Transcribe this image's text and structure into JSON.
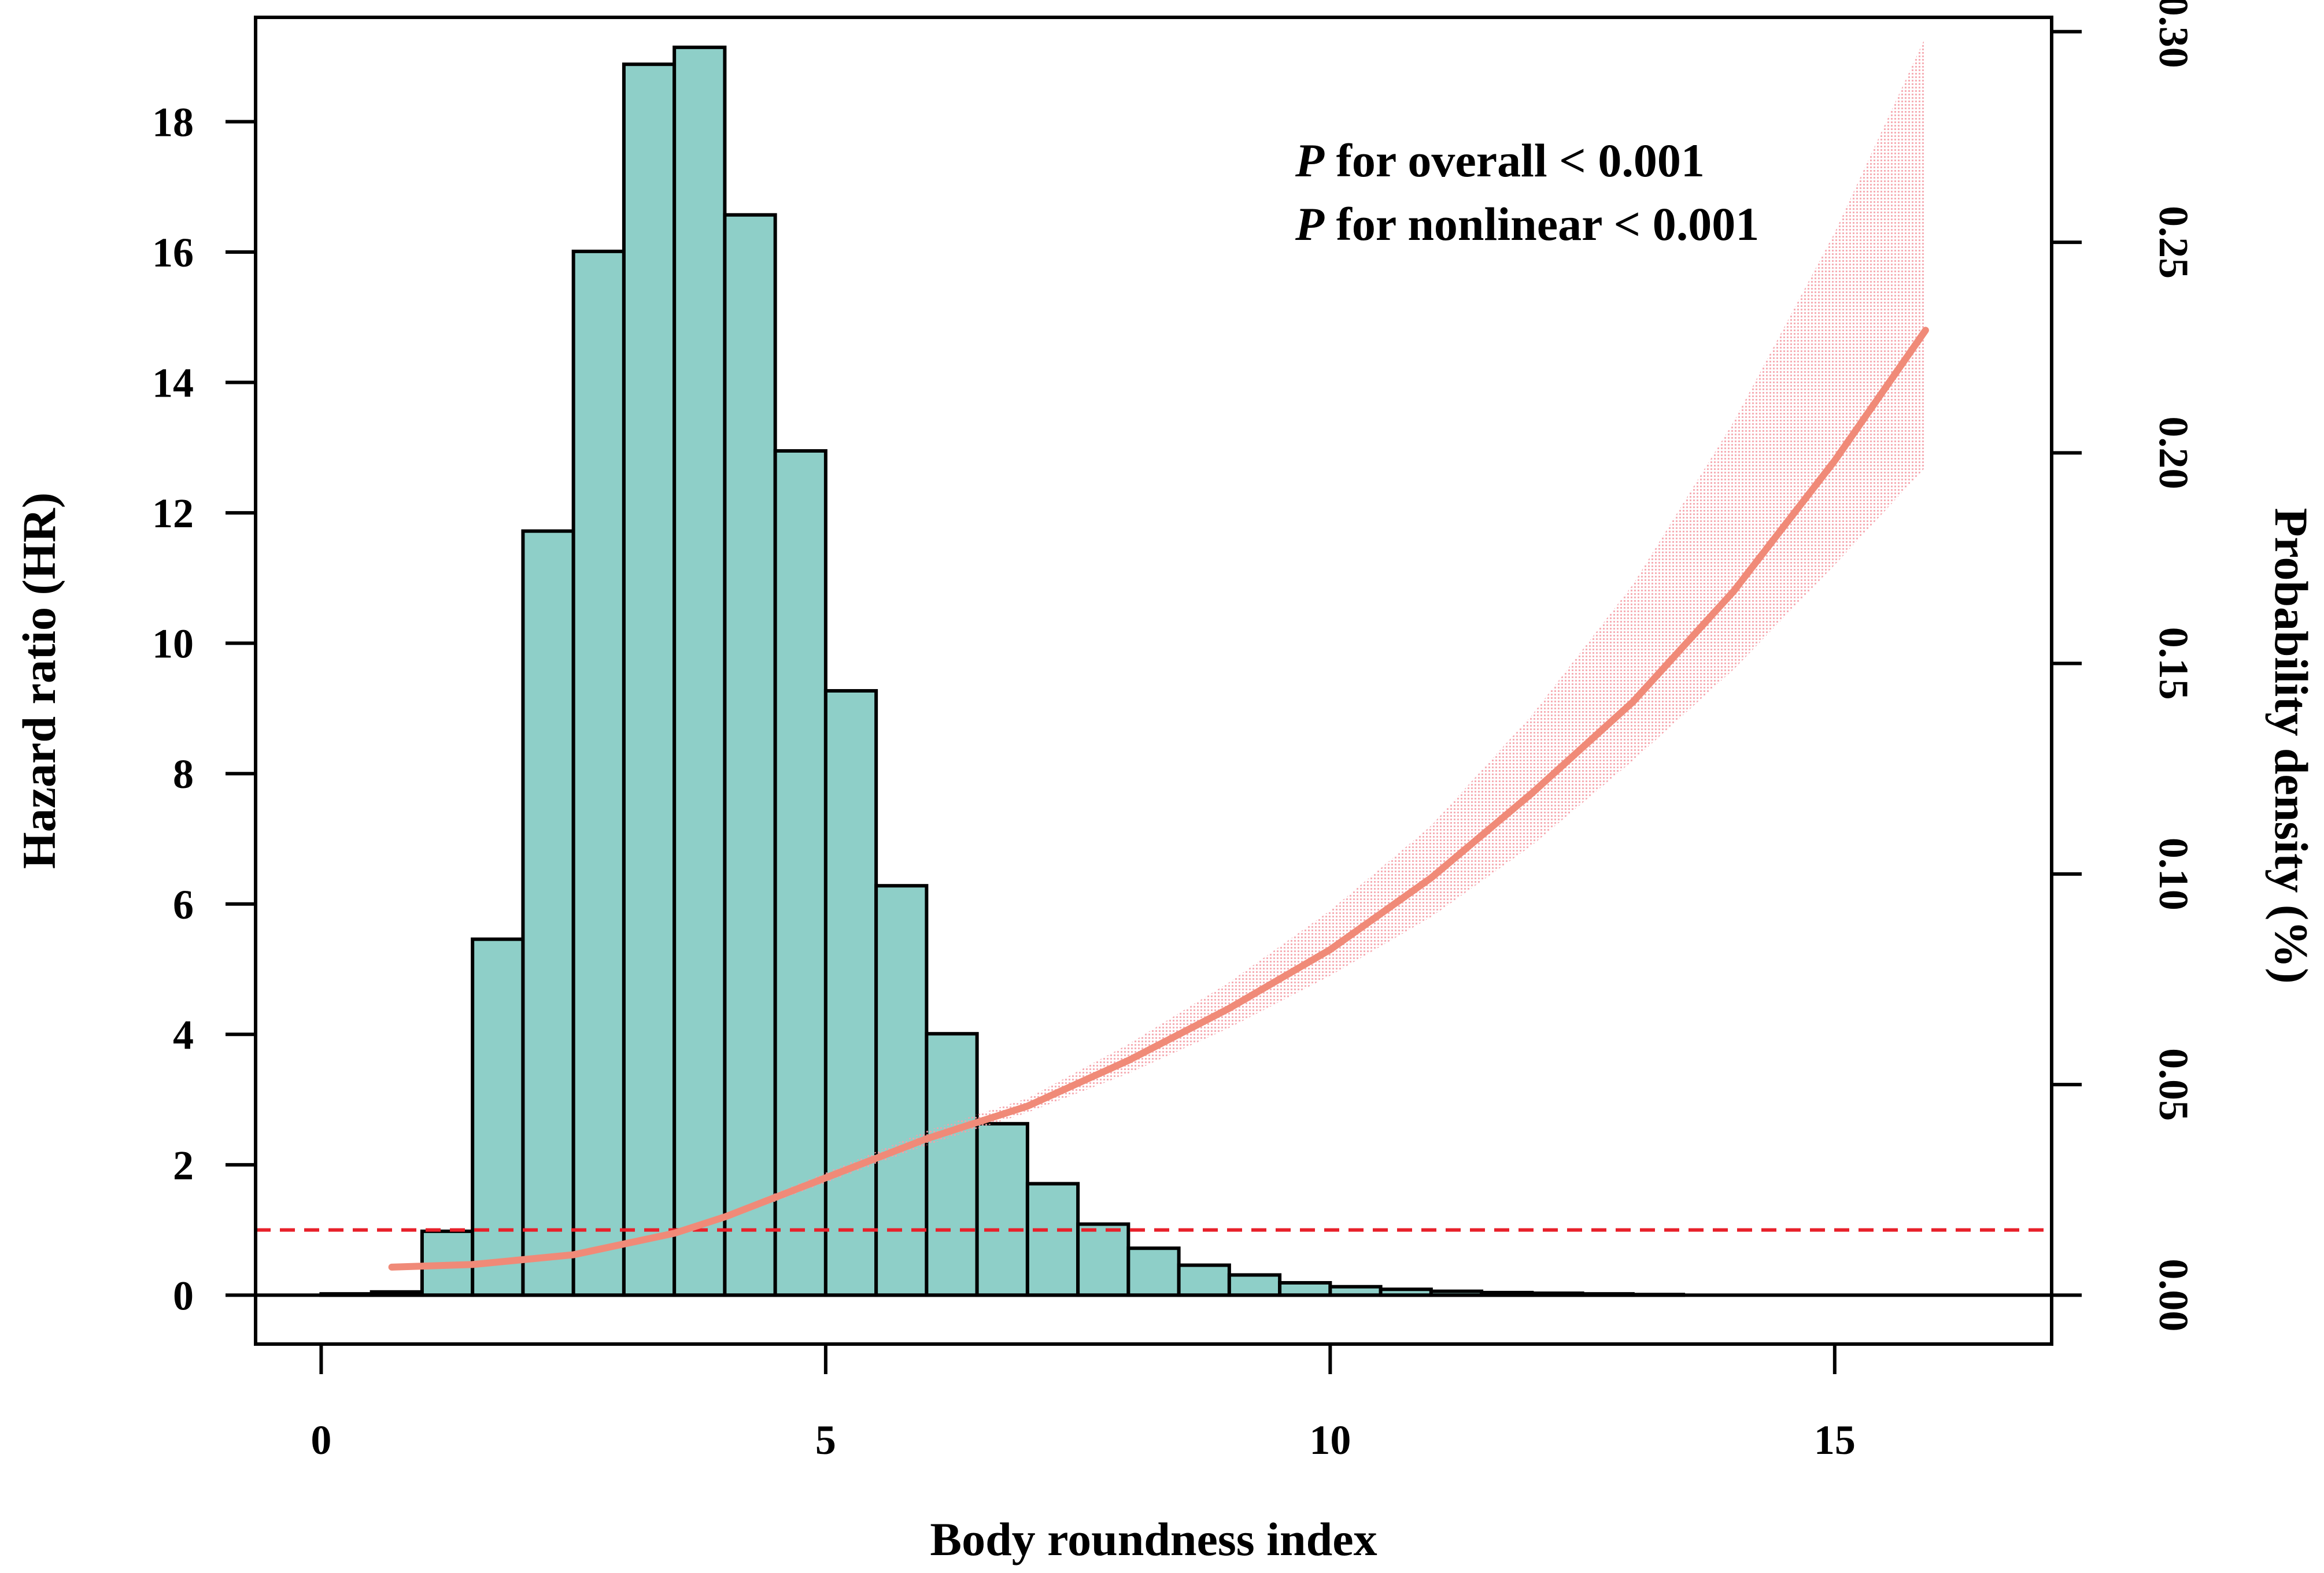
{
  "chart_data": {
    "type": "histogram+line",
    "xlabel": "Body roundness index",
    "ylabel_left": "Hazard ratio (HR)",
    "ylabel_right": "Probability density (%)",
    "xlim": [
      -0.65,
      17.15
    ],
    "ylim_left": [
      -0.75,
      19.6
    ],
    "x_ticks": [
      0,
      5,
      10,
      15
    ],
    "x_tick_labels": [
      "0",
      "5",
      "10",
      "15"
    ],
    "y_left_ticks": [
      0,
      2,
      4,
      6,
      8,
      10,
      12,
      14,
      16,
      18
    ],
    "y_left_tick_labels": [
      "0",
      "2",
      "4",
      "6",
      "8",
      "10",
      "12",
      "14",
      "16",
      "18"
    ],
    "y_right_ticks": [
      0,
      3.23,
      6.46,
      9.69,
      12.92,
      16.15
    ],
    "y_right_tick_labels": [
      "0.00",
      "0.05",
      "0.10",
      "0.15",
      "0.20",
      "0.25"
    ],
    "y_right_ticks_upper": [
      19.38
    ],
    "y_right_tick_labels_upper": [
      "0.30"
    ],
    "annotations": [
      {
        "italic": "P",
        "text": " for overall < 0.001"
      },
      {
        "italic": "P",
        "text": " for nonlinear < 0.001"
      }
    ],
    "reference_line_hr": 1,
    "histogram": {
      "bin_width": 0.5,
      "bins_start": [
        0,
        0.5,
        1,
        1.5,
        2,
        2.5,
        3,
        3.5,
        4,
        4.5,
        5,
        5.5,
        6,
        6.5,
        7,
        7.5,
        8,
        8.5,
        9,
        9.5,
        10,
        10.5,
        11,
        11.5,
        12,
        12.5,
        13
      ],
      "heights": [
        0.02,
        0.05,
        0.98,
        5.46,
        11.72,
        16.01,
        18.88,
        19.14,
        16.57,
        12.95,
        9.27,
        6.28,
        4.01,
        2.63,
        1.71,
        1.09,
        0.72,
        0.46,
        0.31,
        0.19,
        0.13,
        0.09,
        0.06,
        0.04,
        0.03,
        0.02,
        0.01
      ],
      "fill_color": "#8ecfc8"
    },
    "hr_curve": {
      "x": [
        0.7,
        1.5,
        2.5,
        3.5,
        4.0,
        5.0,
        6.0,
        7.0,
        8.0,
        9.0,
        10.0,
        11.0,
        12.0,
        13.0,
        14.0,
        15.0,
        15.9
      ],
      "hr": [
        0.43,
        0.47,
        0.62,
        0.95,
        1.2,
        1.8,
        2.4,
        2.9,
        3.6,
        4.4,
        5.3,
        6.4,
        7.7,
        9.1,
        10.8,
        12.8,
        14.8
      ],
      "lower": [
        0.38,
        0.43,
        0.58,
        0.9,
        1.15,
        1.72,
        2.3,
        2.8,
        3.4,
        4.1,
        4.9,
        5.8,
        6.9,
        8.2,
        9.6,
        11.2,
        12.7
      ],
      "upper": [
        0.48,
        0.52,
        0.66,
        1.0,
        1.25,
        1.88,
        2.52,
        3.02,
        3.85,
        4.8,
        5.9,
        7.2,
        8.9,
        10.9,
        13.4,
        16.3,
        19.3
      ],
      "line_color": "#f08a78",
      "band_color": "#f4a0a8"
    },
    "ref_line_color": "#e8202a"
  }
}
